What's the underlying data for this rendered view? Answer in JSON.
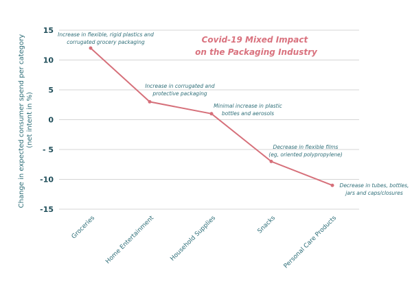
{
  "chart_data": {
    "type": "line",
    "title": [
      "Covid-19 Mixed Impact",
      "on the Packaging Industry"
    ],
    "xlabel": "",
    "ylabel": [
      "Change in expected consumer spend per category",
      "(net intent in %)"
    ],
    "ylim": [
      -15,
      15
    ],
    "yticks": [
      15,
      10,
      5,
      0,
      -5,
      -10,
      -15
    ],
    "ytick_labels": [
      "15",
      "10",
      "5",
      "0",
      "- 5",
      "-10",
      "-15"
    ],
    "grid": true,
    "categories": [
      "Groceries",
      "Home Entertainment",
      "Household Supplies",
      "Snacks",
      "Personal Care Products"
    ],
    "series": [
      {
        "name": "Change in expected consumer spend",
        "values": [
          12,
          3,
          1,
          -7,
          -11
        ],
        "color": "#d6707a"
      }
    ],
    "annotations": [
      {
        "category": "Groceries",
        "lines": [
          "Increase in flexible, rigid plastics and",
          "corrugated grocery packaging"
        ]
      },
      {
        "category": "Home Entertainment",
        "lines": [
          "Increase in corrugated and",
          "protective packaging"
        ]
      },
      {
        "category": "Household Supplies",
        "lines": [
          "Minimal increase in plastic",
          "bottles and aerosols"
        ]
      },
      {
        "category": "Snacks",
        "lines": [
          "Decrease in flexible films",
          "(eg, oriented polypropylene)"
        ]
      },
      {
        "category": "Personal Care Products",
        "lines": [
          "Decrease in tubes, bottles,",
          "jars and caps/closures"
        ]
      }
    ]
  }
}
